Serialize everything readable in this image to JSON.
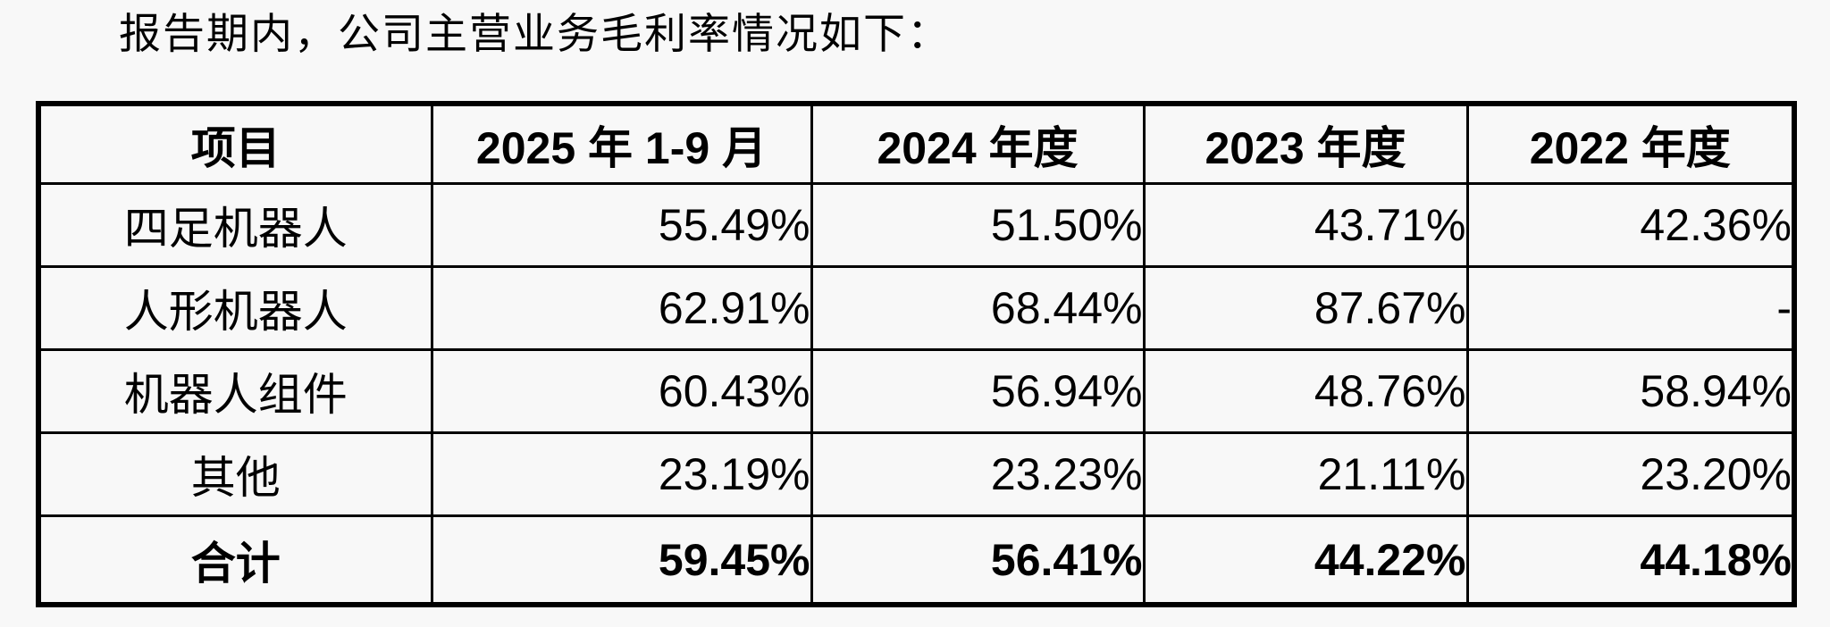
{
  "title": "报告期内，公司主营业务毛利率情况如下：",
  "colors": {
    "text": "#000000",
    "background": "#f8f8f8",
    "table_border": "#000000"
  },
  "table": {
    "columns": [
      "项目",
      "2025 年 1-9 月",
      "2024 年度",
      "2023 年度",
      "2022 年度"
    ],
    "rows": [
      {
        "label": "四足机器人",
        "values": [
          "55.49%",
          "51.50%",
          "43.71%",
          "42.36%"
        ],
        "bold": false
      },
      {
        "label": "人形机器人",
        "values": [
          "62.91%",
          "68.44%",
          "87.67%",
          "-"
        ],
        "bold": false
      },
      {
        "label": "机器人组件",
        "values": [
          "60.43%",
          "56.94%",
          "48.76%",
          "58.94%"
        ],
        "bold": false
      },
      {
        "label": "其他",
        "values": [
          "23.19%",
          "23.23%",
          "21.11%",
          "23.20%"
        ],
        "bold": false
      },
      {
        "label": "合计",
        "values": [
          "59.45%",
          "56.41%",
          "44.22%",
          "44.18%"
        ],
        "bold": true
      }
    ]
  }
}
